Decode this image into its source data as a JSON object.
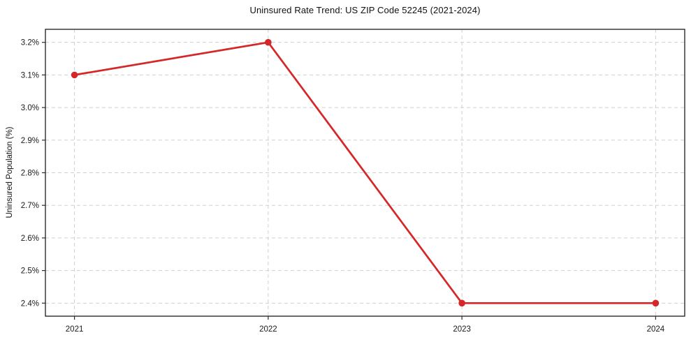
{
  "chart_data": {
    "type": "line",
    "title": "Uninsured Rate Trend: US ZIP Code 52245 (2021-2024)",
    "xlabel": "",
    "ylabel": "Uninsured Population (%)",
    "x": [
      2021,
      2022,
      2023,
      2024
    ],
    "xtick_labels": [
      "2021",
      "2022",
      "2023",
      "2024"
    ],
    "values": [
      3.1,
      3.2,
      2.4,
      2.4
    ],
    "yticks": [
      2.4,
      2.5,
      2.6,
      2.7,
      2.8,
      2.9,
      3.0,
      3.1,
      3.2
    ],
    "ytick_labels": [
      "2.4%",
      "2.5%",
      "2.6%",
      "2.7%",
      "2.8%",
      "2.9%",
      "3.0%",
      "3.1%",
      "3.2%"
    ],
    "ylim": [
      2.36,
      3.24
    ],
    "xlim": [
      2020.85,
      2024.15
    ],
    "grid": {
      "visible": true,
      "axis": "both",
      "style": "dashed"
    },
    "legend_visible": false,
    "colors": {
      "line": "#d62728",
      "marker": "#d62728",
      "grid": "#cfcfcf",
      "spine": "#2b2b2b",
      "text": "#1a1a1a",
      "background": "#ffffff"
    }
  }
}
